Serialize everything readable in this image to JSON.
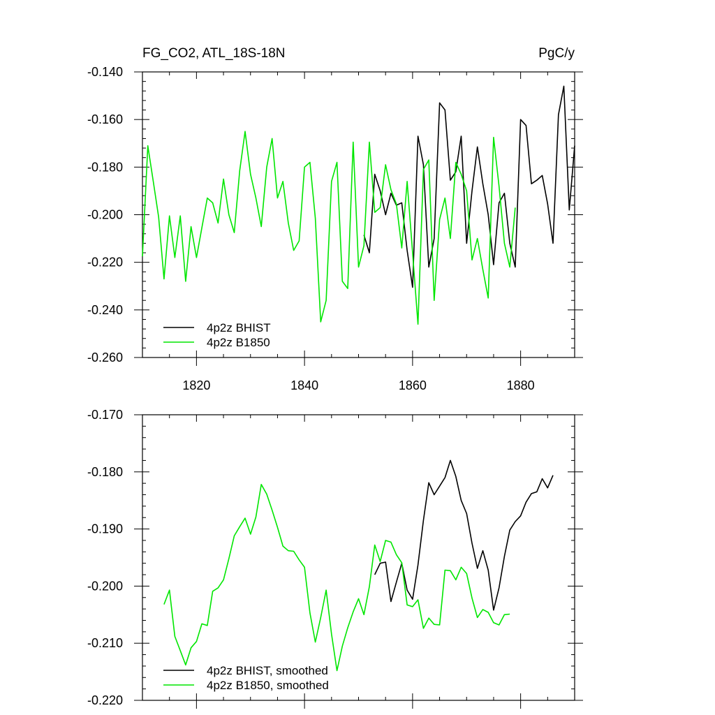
{
  "chart_data": [
    {
      "type": "line",
      "title": "FG_CO2, ATL_18S-18N",
      "units": "PgC/y",
      "xlim": [
        1810,
        1890
      ],
      "ylim": [
        -0.26,
        -0.14
      ],
      "x_ticks": [
        "1820",
        "1840",
        "1860",
        "1880"
      ],
      "y_ticks": [
        "-0.140",
        "-0.160",
        "-0.180",
        "-0.200",
        "-0.220",
        "-0.240",
        "-0.260"
      ],
      "legend_position": "bottom-left",
      "series": [
        {
          "name": "4p2z BHIST",
          "color": "#000000",
          "x_start": 1851,
          "values": [
            -0.2085,
            -0.216,
            -0.183,
            -0.19,
            -0.2,
            -0.191,
            -0.196,
            -0.195,
            -0.215,
            -0.2305,
            -0.167,
            -0.179,
            -0.222,
            -0.21,
            -0.153,
            -0.156,
            -0.1855,
            -0.182,
            -0.167,
            -0.212,
            -0.19,
            -0.1715,
            -0.187,
            -0.2,
            -0.221,
            -0.195,
            -0.191,
            -0.212,
            -0.222,
            -0.16,
            -0.1625,
            -0.187,
            -0.1855,
            -0.1835,
            -0.1955,
            -0.212,
            -0.158,
            -0.146,
            -0.198,
            -0.171
          ]
        },
        {
          "name": "4p2z B1850",
          "color": "#00e600",
          "x_start": 1810,
          "values": [
            -0.2175,
            -0.171,
            -0.186,
            -0.201,
            -0.227,
            -0.2005,
            -0.218,
            -0.2005,
            -0.228,
            -0.205,
            -0.218,
            -0.2055,
            -0.193,
            -0.195,
            -0.2035,
            -0.185,
            -0.2,
            -0.2075,
            -0.1815,
            -0.165,
            -0.183,
            -0.193,
            -0.205,
            -0.18,
            -0.168,
            -0.193,
            -0.186,
            -0.2035,
            -0.215,
            -0.211,
            -0.18,
            -0.178,
            -0.2015,
            -0.245,
            -0.236,
            -0.186,
            -0.178,
            -0.228,
            -0.231,
            -0.1695,
            -0.222,
            -0.213,
            -0.1695,
            -0.199,
            -0.197,
            -0.179,
            -0.1895,
            -0.1955,
            -0.214,
            -0.186,
            -0.216,
            -0.246,
            -0.181,
            -0.177,
            -0.236,
            -0.202,
            -0.193,
            -0.21,
            -0.178,
            -0.183,
            -0.19,
            -0.219,
            -0.21,
            -0.223,
            -0.235,
            -0.1675,
            -0.188,
            -0.212,
            -0.222,
            -0.197
          ]
        }
      ]
    },
    {
      "type": "line",
      "xlim": [
        1810,
        1890
      ],
      "ylim": [
        -0.22,
        -0.17
      ],
      "y_ticks": [
        "-0.170",
        "-0.180",
        "-0.190",
        "-0.200",
        "-0.210",
        "-0.220"
      ],
      "legend_position": "bottom-left",
      "series": [
        {
          "name": "4p2z BHIST, smoothed",
          "color": "#000000",
          "x_start": 1853,
          "values": [
            -0.198,
            -0.196,
            -0.1958,
            -0.2027,
            -0.1993,
            -0.196,
            -0.2007,
            -0.2023,
            -0.1963,
            -0.1885,
            -0.1819,
            -0.184,
            -0.1825,
            -0.181,
            -0.178,
            -0.1808,
            -0.185,
            -0.1873,
            -0.1925,
            -0.1969,
            -0.1938,
            -0.1972,
            -0.2042,
            -0.2003,
            -0.1948,
            -0.1902,
            -0.1887,
            -0.1877,
            -0.1853,
            -0.1838,
            -0.1835,
            -0.1812,
            -0.1828,
            -0.1806
          ]
        },
        {
          "name": "4p2z B1850, smoothed",
          "color": "#00e600",
          "x_start": 1814,
          "values": [
            -0.2032,
            -0.2007,
            -0.2088,
            -0.2113,
            -0.2138,
            -0.2108,
            -0.2097,
            -0.2066,
            -0.2069,
            -0.2009,
            -0.2003,
            -0.1989,
            -0.1952,
            -0.1912,
            -0.1896,
            -0.1881,
            -0.1909,
            -0.1879,
            -0.1822,
            -0.1839,
            -0.1867,
            -0.1897,
            -0.193,
            -0.1938,
            -0.1939,
            -0.1954,
            -0.1967,
            -0.2047,
            -0.2098,
            -0.2055,
            -0.2007,
            -0.2084,
            -0.2148,
            -0.2105,
            -0.2073,
            -0.2045,
            -0.2022,
            -0.205,
            -0.2001,
            -0.1928,
            -0.1957,
            -0.192,
            -0.1923,
            -0.1945,
            -0.1959,
            -0.2033,
            -0.2036,
            -0.2024,
            -0.2074,
            -0.2056,
            -0.2067,
            -0.2068,
            -0.1972,
            -0.1973,
            -0.1989,
            -0.1967,
            -0.1978,
            -0.2021,
            -0.2055,
            -0.2041,
            -0.2046,
            -0.2064,
            -0.2068,
            -0.205,
            -0.2049
          ]
        }
      ]
    }
  ]
}
